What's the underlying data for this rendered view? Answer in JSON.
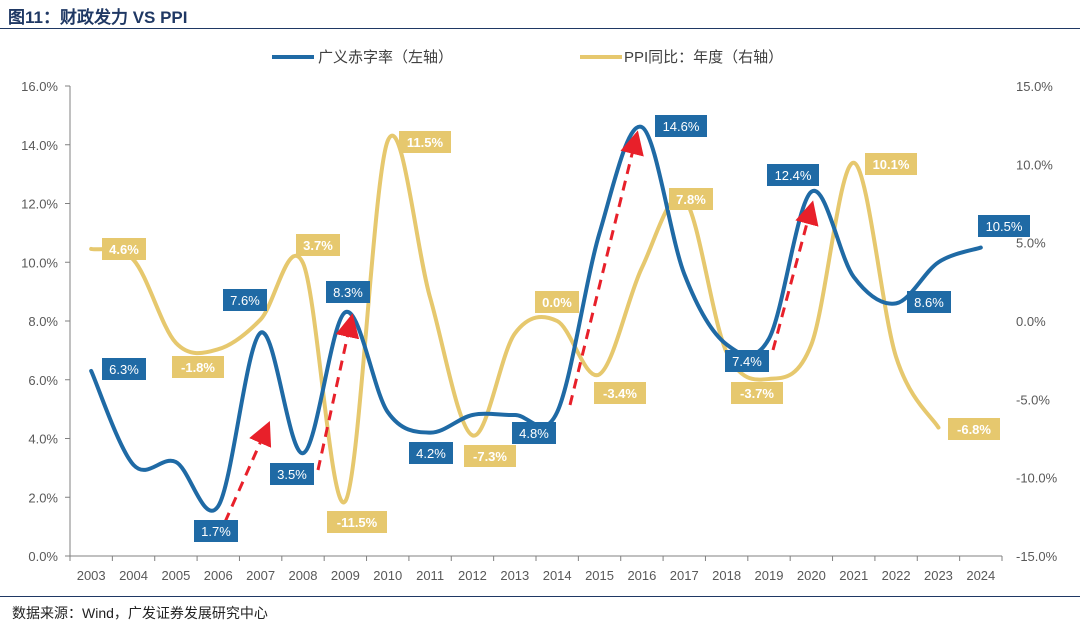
{
  "title": "图11：财政发力 VS PPI",
  "source": "数据来源：Wind，广发证券发展研究中心",
  "colors": {
    "blue": "#1f6aa5",
    "yellow": "#e6c86e",
    "arrow": "#e8202a"
  },
  "chart_data": {
    "type": "line",
    "categories": [
      "2003",
      "2004",
      "2005",
      "2006",
      "2007",
      "2008",
      "2009",
      "2010",
      "2011",
      "2012",
      "2013",
      "2014",
      "2015",
      "2016",
      "2017",
      "2018",
      "2019",
      "2020",
      "2021",
      "2022",
      "2023",
      "2024"
    ],
    "y_left": {
      "range": [
        0,
        16
      ],
      "ticks": [
        "0.0%",
        "2.0%",
        "4.0%",
        "6.0%",
        "8.0%",
        "10.0%",
        "12.0%",
        "14.0%",
        "16.0%"
      ]
    },
    "y_right": {
      "range": [
        -15,
        15
      ],
      "ticks": [
        "-15.0%",
        "-10.0%",
        "-5.0%",
        "0.0%",
        "5.0%",
        "10.0%",
        "15.0%"
      ]
    },
    "legend_position": "top",
    "grid": false,
    "series": [
      {
        "name": "广义赤字率（左轴）",
        "axis": "left",
        "values": [
          6.3,
          3.1,
          3.2,
          1.7,
          7.6,
          3.5,
          8.3,
          4.9,
          4.2,
          4.8,
          4.8,
          4.9,
          11.0,
          14.6,
          9.6,
          7.2,
          7.4,
          12.4,
          9.5,
          8.6,
          10.0,
          10.5
        ],
        "labels": {
          "2003": "6.3%",
          "2006": "1.7%",
          "2007": "7.6%",
          "2008": "3.5%",
          "2009": "8.3%",
          "2011": "4.2%",
          "2013": "4.8%",
          "2016": "14.6%",
          "2019": "7.4%",
          "2020": "12.4%",
          "2022": "8.6%",
          "2024": "10.5%"
        }
      },
      {
        "name": "PPI同比：年度（右轴）",
        "axis": "right",
        "values": [
          4.6,
          3.9,
          -1.4,
          -1.8,
          0.1,
          3.7,
          -11.5,
          11.5,
          1.5,
          -7.3,
          -0.8,
          0.0,
          -3.4,
          3.4,
          7.8,
          -2.0,
          -3.7,
          -1.5,
          10.1,
          -2.3,
          -6.8,
          null
        ],
        "labels": {
          "2003": "4.6%",
          "2006": "-1.8%",
          "2008": "3.7%",
          "2009": "-11.5%",
          "2010": "11.5%",
          "2012": "-7.3%",
          "2014": "0.0%",
          "2015": "-3.4%",
          "2017": "7.8%",
          "2019": "-3.7%",
          "2021": "10.1%",
          "2023": "-6.8%"
        }
      }
    ],
    "annotations": [
      {
        "type": "arrow",
        "from": "2006",
        "to": "2007"
      },
      {
        "type": "arrow",
        "from": "2008",
        "to": "2009"
      },
      {
        "type": "arrow",
        "from": "2014",
        "to": "2016"
      },
      {
        "type": "arrow",
        "from": "2019",
        "to": "2020"
      }
    ]
  }
}
